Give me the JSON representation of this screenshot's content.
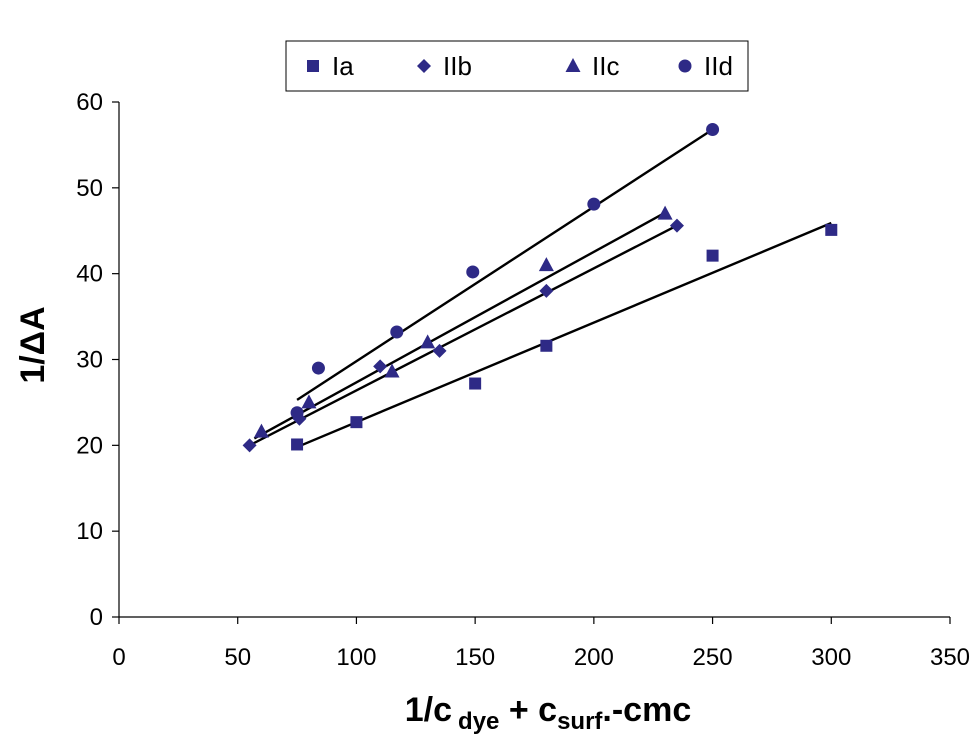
{
  "chart_data": {
    "type": "scatter",
    "title": "",
    "xlabel": {
      "main": "1/c",
      "sub1": "dye",
      "mid": " + c",
      "sub2": "surf",
      "end": ".-cmc"
    },
    "ylabel": "1/ΔA",
    "xlim": [
      0,
      350
    ],
    "ylim": [
      0,
      60
    ],
    "xticks": [
      0,
      50,
      100,
      150,
      200,
      250,
      300,
      350
    ],
    "yticks": [
      0,
      10,
      20,
      30,
      40,
      50,
      60
    ],
    "grid": false,
    "legend_position": "top",
    "colors": {
      "marker": "#2e2a86",
      "line": "#000000",
      "axis": "#000000"
    },
    "series": [
      {
        "name": "Ia",
        "marker": "square",
        "points": [
          [
            75,
            20.1
          ],
          [
            100,
            22.7
          ],
          [
            150,
            27.2
          ],
          [
            180,
            31.6
          ],
          [
            250,
            42.1
          ],
          [
            300,
            45.1
          ]
        ],
        "fit": [
          [
            75,
            19.8
          ],
          [
            300,
            45.9
          ]
        ]
      },
      {
        "name": "IIb",
        "marker": "diamond",
        "points": [
          [
            55,
            20.0
          ],
          [
            76,
            23.1
          ],
          [
            110,
            29.2
          ],
          [
            135,
            31.0
          ],
          [
            180,
            38.0
          ],
          [
            235,
            45.6
          ]
        ],
        "fit": [
          [
            55,
            20.0
          ],
          [
            235,
            45.6
          ]
        ]
      },
      {
        "name": "IIc",
        "marker": "triangle",
        "points": [
          [
            60,
            21.6
          ],
          [
            80,
            25.0
          ],
          [
            115,
            28.6
          ],
          [
            130,
            32.0
          ],
          [
            180,
            41.0
          ],
          [
            230,
            47.0
          ]
        ],
        "fit": [
          [
            57,
            20.8
          ],
          [
            230,
            47.1
          ]
        ]
      },
      {
        "name": "IId",
        "marker": "circle",
        "points": [
          [
            75,
            23.8
          ],
          [
            84,
            29.0
          ],
          [
            117,
            33.2
          ],
          [
            149,
            40.2
          ],
          [
            200,
            48.1
          ],
          [
            250,
            56.8
          ]
        ],
        "fit": [
          [
            75,
            25.3
          ],
          [
            250,
            56.8
          ]
        ]
      }
    ]
  }
}
